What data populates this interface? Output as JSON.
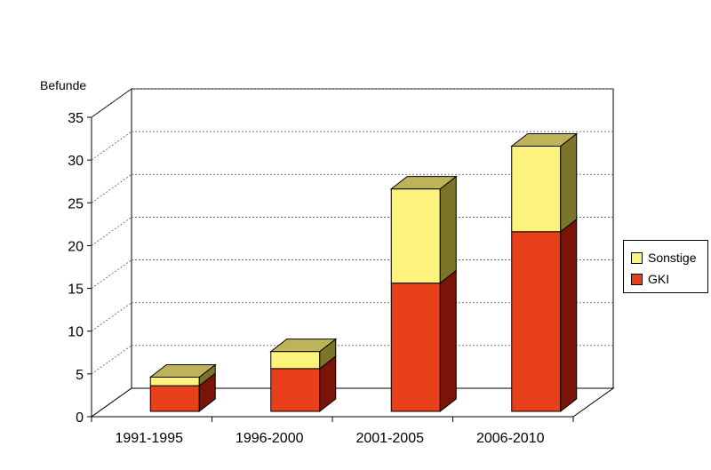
{
  "chart_data": {
    "type": "bar",
    "stacked": true,
    "three_d": true,
    "title": "",
    "ylabel": "Befunde",
    "xlabel": "",
    "categories": [
      "1991-1995",
      "1996-2000",
      "2001-2005",
      "2006-2010"
    ],
    "series": [
      {
        "name": "GKI",
        "values": [
          3,
          5,
          15,
          21
        ],
        "color": "#e8401a",
        "side_color": "#7a1408"
      },
      {
        "name": "Sonstige",
        "values": [
          1,
          2,
          11,
          10
        ],
        "color": "#fbf37c",
        "side_color": "#7c7428",
        "top_color": "#bdb45a"
      }
    ],
    "ylim": [
      0,
      35
    ],
    "yticks": [
      "0",
      "5",
      "10",
      "15",
      "20",
      "25",
      "30",
      "35"
    ],
    "grid": true,
    "legend_position": "right"
  }
}
